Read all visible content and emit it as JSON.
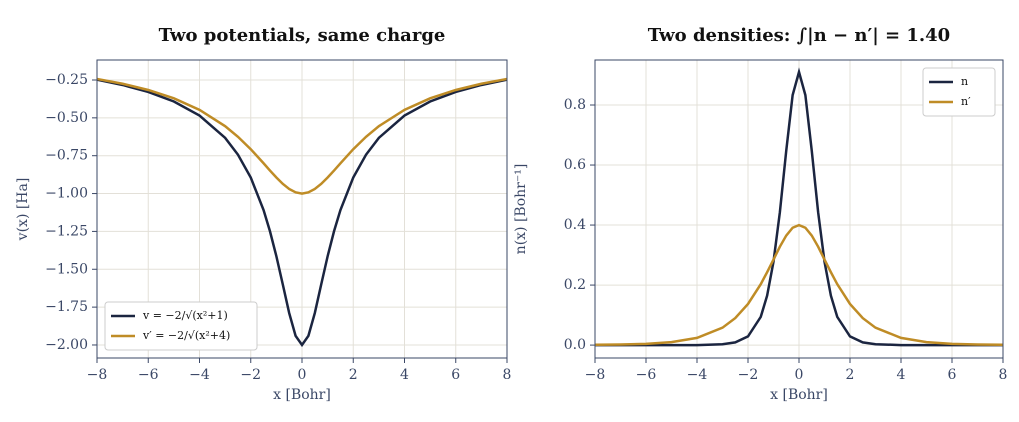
{
  "chart_data": [
    {
      "type": "line",
      "title": "Two potentials, same charge",
      "xlabel": "x  [Bohr]",
      "ylabel": "v(x)  [Ha]",
      "x": [
        -8,
        -7,
        -6,
        -5,
        -4,
        -3,
        -2.5,
        -2,
        -1.5,
        -1.25,
        -1,
        -0.75,
        -0.5,
        -0.25,
        0,
        0.25,
        0.5,
        0.75,
        1,
        1.25,
        1.5,
        2,
        2.5,
        3,
        4,
        5,
        6,
        7,
        8
      ],
      "series": [
        {
          "name": "v = −2/√(x²+1)",
          "color": "#1b2540",
          "values": [
            -0.248,
            -0.283,
            -0.329,
            -0.392,
            -0.485,
            -0.632,
            -0.743,
            -0.894,
            -1.109,
            -1.249,
            -1.414,
            -1.6,
            -1.789,
            -1.94,
            -2,
            -1.94,
            -1.789,
            -1.6,
            -1.414,
            -1.249,
            -1.109,
            -0.894,
            -0.743,
            -0.632,
            -0.485,
            -0.392,
            -0.329,
            -0.283,
            -0.248
          ]
        },
        {
          "name": "v′ = −2/√(x²+4)",
          "color": "#bf8c26",
          "values": [
            -0.243,
            -0.275,
            -0.316,
            -0.371,
            -0.447,
            -0.555,
            -0.625,
            -0.707,
            -0.8,
            -0.848,
            -0.894,
            -0.936,
            -0.97,
            -0.992,
            -1,
            -0.992,
            -0.97,
            -0.936,
            -0.894,
            -0.848,
            -0.8,
            -0.707,
            -0.625,
            -0.555,
            -0.447,
            -0.371,
            -0.316,
            -0.275,
            -0.243
          ]
        }
      ],
      "xlim": [
        -8,
        8
      ],
      "xticks": [
        {
          "value": -8,
          "label": "−8"
        },
        {
          "value": -6,
          "label": "−6"
        },
        {
          "value": -4,
          "label": "−4"
        },
        {
          "value": -2,
          "label": "−2"
        },
        0,
        2,
        4,
        6,
        8
      ],
      "ylim": [
        -2.086,
        -0.118
      ],
      "yticks": [
        {
          "value": -2,
          "label": "−2.00"
        },
        {
          "value": -1.75,
          "label": "−1.75"
        },
        {
          "value": -1.5,
          "label": "−1.50"
        },
        {
          "value": -1.25,
          "label": "−1.25"
        },
        {
          "value": -1,
          "label": "−1.00"
        },
        {
          "value": -0.75,
          "label": "−0.75"
        },
        {
          "value": -0.5,
          "label": "−0.50"
        },
        {
          "value": -0.25,
          "label": "−0.25"
        }
      ],
      "grid": true,
      "legend": "lower-left"
    },
    {
      "type": "line",
      "title": "Two densities: ∫|n − n′| = 1.40",
      "xlabel": "x  [Bohr]",
      "ylabel": "n(x)  [Bohr⁻¹]",
      "x": [
        -8,
        -7,
        -6,
        -5,
        -4,
        -3,
        -2.5,
        -2,
        -1.5,
        -1.25,
        -1,
        -0.75,
        -0.5,
        -0.25,
        0,
        0.25,
        0.5,
        0.75,
        1,
        1.25,
        1.5,
        2,
        2.5,
        3,
        4,
        5,
        6,
        7,
        8
      ],
      "series": [
        {
          "name": "n",
          "color": "#1b2540",
          "values": [
            0,
            0,
            0,
            0,
            0,
            0.003,
            0.009,
            0.029,
            0.094,
            0.165,
            0.278,
            0.443,
            0.648,
            0.833,
            0.91,
            0.833,
            0.648,
            0.443,
            0.278,
            0.165,
            0.094,
            0.029,
            0.009,
            0.003,
            0,
            0,
            0,
            0,
            0
          ]
        },
        {
          "name": "n′",
          "color": "#bf8c26",
          "values": [
            0.001,
            0.002,
            0.004,
            0.01,
            0.024,
            0.058,
            0.09,
            0.137,
            0.203,
            0.243,
            0.285,
            0.328,
            0.365,
            0.391,
            0.4,
            0.391,
            0.365,
            0.328,
            0.285,
            0.243,
            0.203,
            0.137,
            0.09,
            0.058,
            0.024,
            0.01,
            0.004,
            0.002,
            0.001
          ]
        }
      ],
      "xlim": [
        -8,
        8
      ],
      "xticks": [
        {
          "value": -8,
          "label": "−8"
        },
        {
          "value": -6,
          "label": "−6"
        },
        {
          "value": -4,
          "label": "−4"
        },
        {
          "value": -2,
          "label": "−2"
        },
        0,
        2,
        4,
        6,
        8
      ],
      "ylim": [
        -0.043,
        0.95
      ],
      "yticks": [
        {
          "value": 0,
          "label": "0.0"
        },
        0.2,
        0.4,
        0.6,
        0.8
      ],
      "grid": true,
      "legend": "upper-right"
    }
  ]
}
